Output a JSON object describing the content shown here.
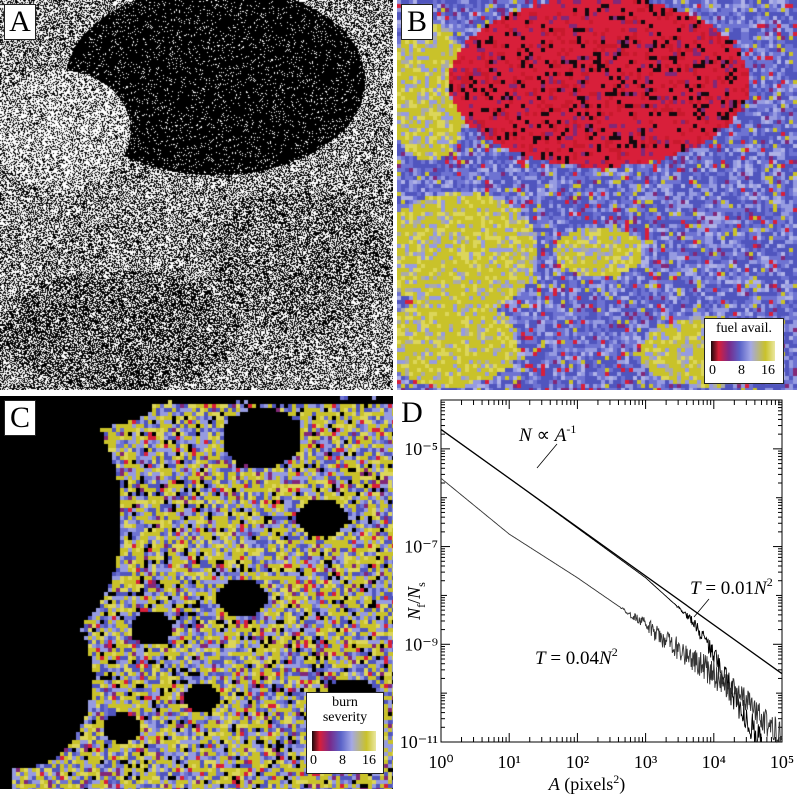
{
  "panels": {
    "a": {
      "label": "A"
    },
    "b": {
      "label": "B",
      "legend": {
        "title": "fuel avail.",
        "ticks": [
          "0",
          "8",
          "16"
        ]
      }
    },
    "c": {
      "label": "C",
      "legend": {
        "title": "burn severity",
        "title_lines": [
          "burn",
          "severity"
        ],
        "ticks": [
          "0",
          "8",
          "16"
        ]
      }
    },
    "d": {
      "label": "D"
    }
  },
  "colors": {
    "red": "#d81f3a",
    "blue": "#5a63c8",
    "lavender": "#9aa0e0",
    "yellow": "#c9c22a",
    "black": "#000000"
  },
  "chart_data": {
    "type": "line",
    "xlabel": "A (pixels²)",
    "ylabel": "Nf/Ns",
    "x_scale": "log",
    "y_scale": "log",
    "xlim": [
      1,
      100000
    ],
    "ylim": [
      1e-11,
      0.0001
    ],
    "x_ticks": [
      "10⁰",
      "10¹",
      "10²",
      "10³",
      "10⁴",
      "10⁵"
    ],
    "y_ticks": [
      "10⁻⁵",
      "10⁻⁷",
      "10⁻⁹",
      "10⁻¹¹"
    ],
    "series": [
      {
        "name": "N ∝ A⁻¹",
        "x": [
          1,
          100000
        ],
        "y": [
          2.5e-05,
          2.5e-10
        ]
      },
      {
        "name": "T = 0.01N²",
        "x": [
          1,
          10,
          100,
          1000,
          5000,
          10000,
          20000,
          50000
        ],
        "y": [
          2.5e-05,
          2.5e-06,
          2.4e-07,
          2.3e-08,
          3e-09,
          6e-10,
          8e-11,
          1e-11
        ]
      },
      {
        "name": "T = 0.04N²",
        "x": [
          1,
          10,
          100,
          1000,
          10000,
          30000,
          100000
        ],
        "y": [
          2.5e-06,
          1.8e-07,
          2.3e-08,
          2.5e-09,
          2.5e-10,
          7e-11,
          1.2e-11
        ]
      }
    ],
    "annotations": [
      "N ∝ A⁻¹",
      "T = 0.01N²",
      "T = 0.04N²"
    ]
  }
}
